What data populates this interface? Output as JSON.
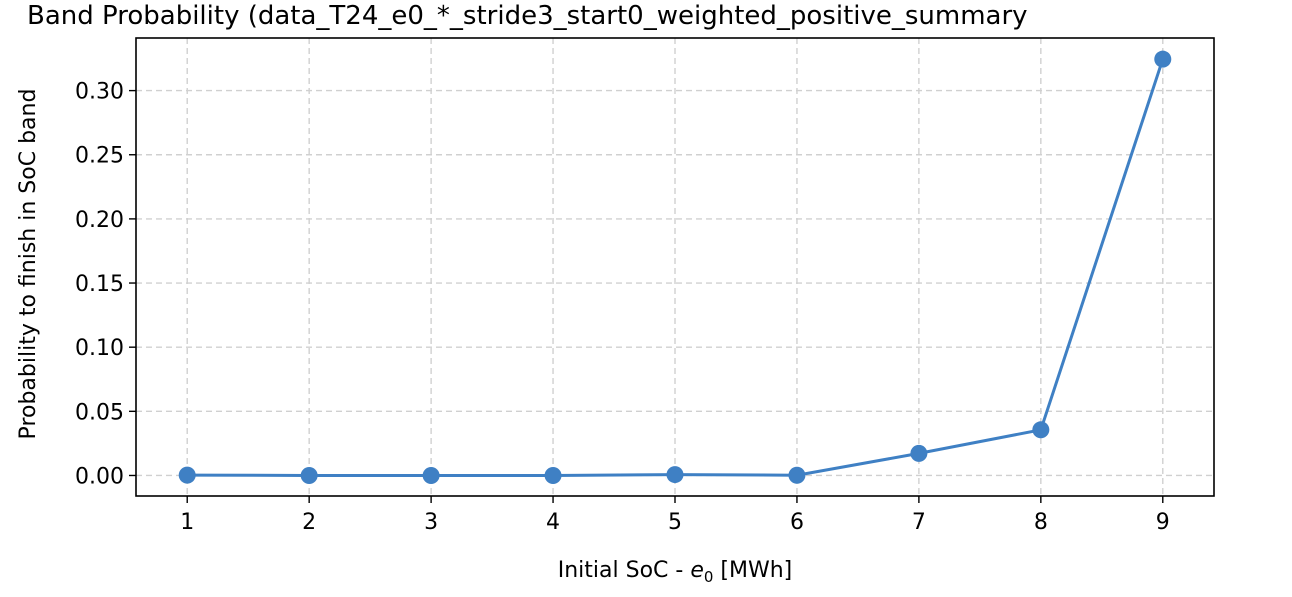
{
  "chart_data": {
    "type": "line",
    "title": "Band Probability (data_T24_e0_*_stride3_start0_weighted_positive_summary",
    "xlabel_prefix": "Initial SoC - ",
    "xlabel_symbol": "e",
    "xlabel_subscript": "0",
    "xlabel_suffix": " [MWh]",
    "ylabel": "Probability to finish in SoC band",
    "x": [
      1,
      2,
      3,
      4,
      5,
      6,
      7,
      8,
      9
    ],
    "x_tick_labels": [
      "1",
      "2",
      "3",
      "4",
      "5",
      "6",
      "7",
      "8",
      "9"
    ],
    "y": [
      0.0003,
      0.0,
      0.0,
      0.0,
      0.0007,
      0.0002,
      0.0172,
      0.0356,
      0.3245
    ],
    "y_ticks": [
      0.0,
      0.05,
      0.1,
      0.15,
      0.2,
      0.25,
      0.3
    ],
    "y_tick_labels": [
      "0.00",
      "0.05",
      "0.10",
      "0.15",
      "0.20",
      "0.25",
      "0.30"
    ],
    "xlim": [
      0.58,
      9.42
    ],
    "ylim": [
      -0.016,
      0.341
    ],
    "grid": true,
    "grid_style": "dashed",
    "line_color": "#3f80c4"
  }
}
